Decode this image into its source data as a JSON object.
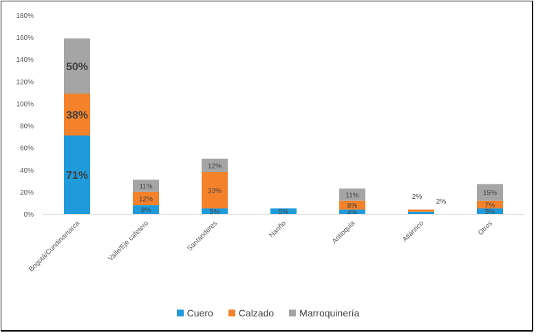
{
  "chart_data": {
    "type": "bar",
    "stacked": true,
    "categories": [
      "Bogotá/Cundinamarca",
      "Valle/Eje cafetero",
      "Santanderes",
      "Nariño",
      "Antioquia",
      "Atlántico",
      "Otros"
    ],
    "series": [
      {
        "name": "Cuero",
        "color": "#1f9bdc",
        "values": [
          0.71,
          0.08,
          0.05,
          0.05,
          0.04,
          0.02,
          0.05
        ],
        "labels": [
          "71%",
          "8%",
          "5%",
          "5%",
          "4%",
          "",
          "5%"
        ]
      },
      {
        "name": "Calzado",
        "color": "#f4822a",
        "values": [
          0.38,
          0.12,
          0.33,
          0,
          0.08,
          0.02,
          0.07
        ],
        "labels": [
          "38%",
          "12%",
          "33%",
          "",
          "8%",
          "2%",
          "7%"
        ]
      },
      {
        "name": "Marroquinería",
        "color": "#a5a5a5",
        "values": [
          0.5,
          0.11,
          0.12,
          0,
          0.11,
          0,
          0.15
        ],
        "labels": [
          "50%",
          "11%",
          "12%",
          "",
          "11%",
          "",
          "15%"
        ]
      }
    ],
    "extra_labels": [
      {
        "category_index": 5,
        "text": "2%"
      }
    ],
    "yticks": [
      "0%",
      "20%",
      "40%",
      "60%",
      "80%",
      "100%",
      "120%",
      "140%",
      "160%",
      "180%"
    ],
    "ylim": [
      0,
      1.8
    ],
    "grid": false,
    "legend": "bottom"
  }
}
